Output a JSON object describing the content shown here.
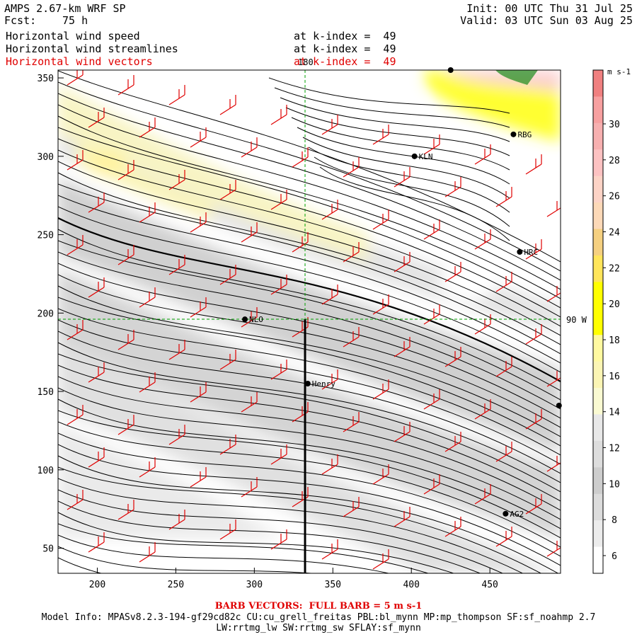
{
  "header": {
    "title": "AMPS 2.67-km WRF SP",
    "fcst_label": "Fcst:",
    "fcst_value": "75 h",
    "init": "Init: 00 UTC Thu 31 Jul 25",
    "valid": "Valid: 03 UTC Sun 03 Aug 25",
    "fields": [
      {
        "name": "Horizontal wind speed",
        "level": "at k-index =  49",
        "color": "#000000"
      },
      {
        "name": "Horizontal wind streamlines",
        "level": "at k-index =  49",
        "color": "#000000"
      },
      {
        "name": "Horizontal wind vectors",
        "level": "at k-index =  49",
        "color": "#e00000"
      }
    ]
  },
  "map": {
    "x_ticks": [
      200,
      250,
      300,
      350,
      400,
      450
    ],
    "y_ticks": [
      50,
      100,
      150,
      200,
      250,
      300,
      350
    ],
    "xlim": [
      175,
      495
    ],
    "ylim": [
      34,
      355
    ],
    "lon_label": "180",
    "lat_label": "90 W",
    "stations": [
      {
        "name": "KLN",
        "x": 402,
        "y": 300
      },
      {
        "name": "RBG",
        "x": 465,
        "y": 314
      },
      {
        "name": "HRC",
        "x": 469,
        "y": 239
      },
      {
        "name": "NLO",
        "x": 294,
        "y": 196
      },
      {
        "name": "Henry",
        "x": 334,
        "y": 155
      },
      {
        "name": "AG2",
        "x": 460,
        "y": 72
      },
      {
        "name": "",
        "x": 494,
        "y": 141
      },
      {
        "name": "",
        "x": 425,
        "y": 355
      }
    ]
  },
  "colorbar": {
    "unit": "m s-1",
    "labels": [
      6,
      8,
      10,
      12,
      14,
      16,
      18,
      20,
      22,
      24,
      26,
      28,
      30
    ],
    "colors": [
      "#ffffff",
      "#ececec",
      "#dcdcdc",
      "#cdcdcd",
      "#dddddd",
      "#e8e8e8",
      "#fafad2",
      "#fbf5b4",
      "#fff9a0",
      "#ffff00",
      "#ffff00",
      "#ffe55a",
      "#f5d080",
      "#fcd9b8",
      "#fcd3c6",
      "#fcc2c2",
      "#f7b0b0",
      "#f7a0a0",
      "#f08080"
    ]
  },
  "footer": {
    "barb": "BARB VECTORS:  FULL BARB = 5 m s-1",
    "model_info": "Model Info: MPASv8.2.3-194-gf29cd82c CU:cu_grell_freitas PBL:bl_mynn MP:mp_thompson SF:sf_noahmp 2.7",
    "model_info2": "LW:rrtmg_lw SW:rrtmg_sw SFLAY:sf_mynn"
  }
}
